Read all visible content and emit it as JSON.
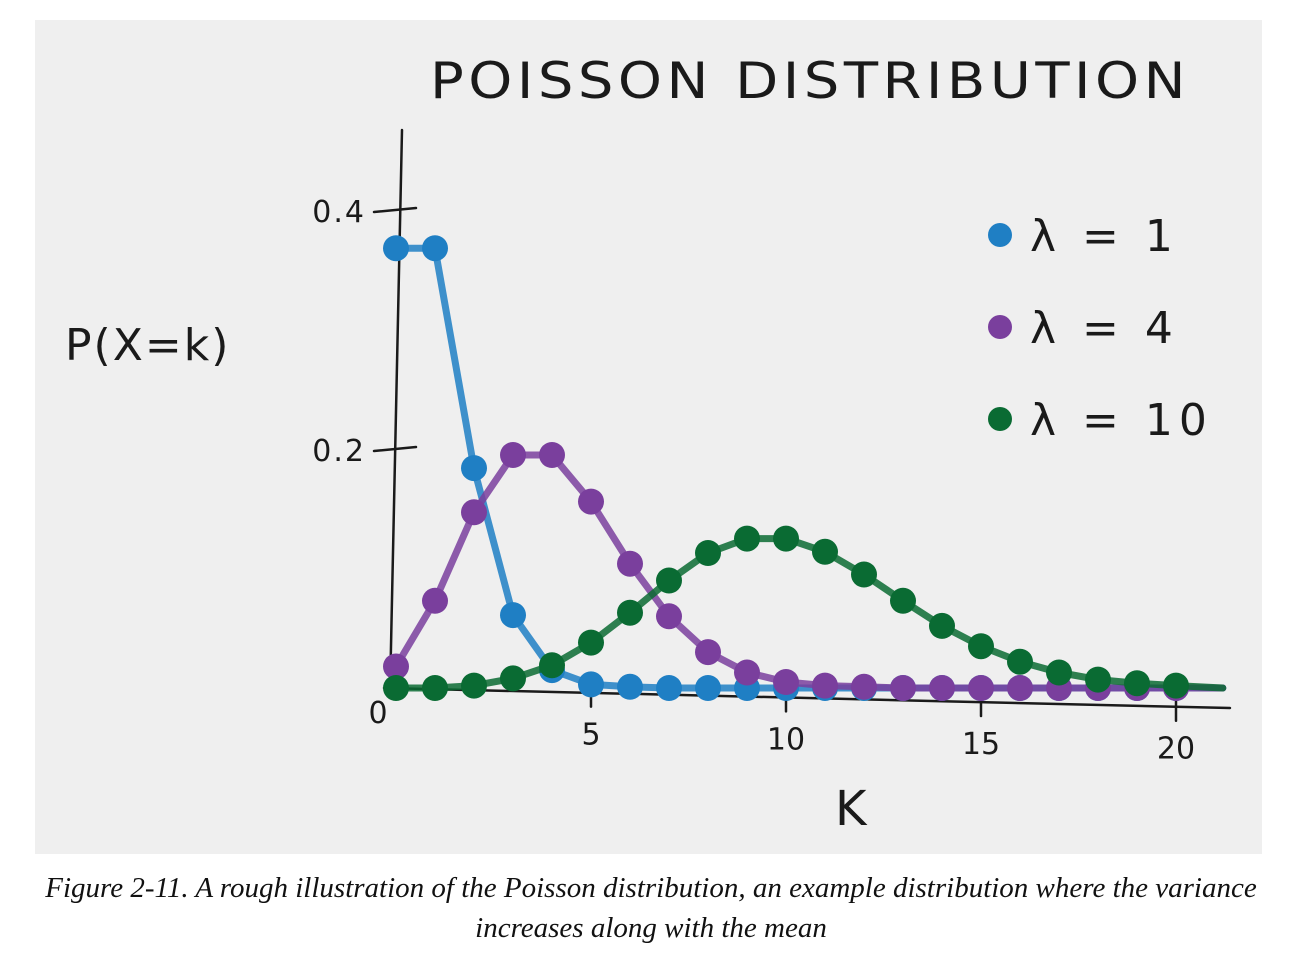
{
  "caption": "Figure 2-11. A rough illustration of the Poisson distribution, an example distribution where the variance increases along with the mean",
  "colors": {
    "lambda1": "#1f7fc4",
    "lambda4": "#7a3f9d",
    "lambda10": "#0a6b33",
    "background": "#efefef",
    "ink": "#1a1a1a"
  },
  "chart_data": {
    "type": "line",
    "title": "POISSON DISTRIBUTION",
    "xlabel": "K",
    "ylabel": "P(X=k)",
    "xlim": [
      0,
      22
    ],
    "ylim": [
      0,
      0.45
    ],
    "xticks": [
      {
        "value": 0,
        "label": "0"
      },
      {
        "value": 5,
        "label": "5"
      },
      {
        "value": 10,
        "label": "10"
      },
      {
        "value": 15,
        "label": "15"
      },
      {
        "value": 20,
        "label": "20"
      }
    ],
    "yticks": [
      {
        "value": 0.2,
        "label": "0.2"
      },
      {
        "value": 0.4,
        "label": "0.4"
      }
    ],
    "legend": "top-right",
    "grid": false,
    "x": [
      0,
      1,
      2,
      3,
      4,
      5,
      6,
      7,
      8,
      9,
      10,
      11,
      12,
      13,
      14,
      15,
      16,
      17,
      18,
      19,
      20
    ],
    "series": [
      {
        "name": "λ = 1",
        "color": "#1f7fc4",
        "values": [
          0.368,
          0.368,
          0.184,
          0.061,
          0.015,
          0.003,
          0.001,
          0,
          0,
          0,
          0,
          0,
          0,
          0,
          0,
          0,
          0,
          0,
          0,
          0,
          0
        ]
      },
      {
        "name": "λ = 4",
        "color": "#7a3f9d",
        "values": [
          0.018,
          0.073,
          0.147,
          0.195,
          0.195,
          0.156,
          0.104,
          0.06,
          0.03,
          0.013,
          0.005,
          0.002,
          0.001,
          0,
          0,
          0,
          0,
          0,
          0,
          0,
          0
        ]
      },
      {
        "name": "λ = 10",
        "color": "#0a6b33",
        "values": [
          0,
          0,
          0.002,
          0.008,
          0.019,
          0.038,
          0.063,
          0.09,
          0.113,
          0.125,
          0.125,
          0.114,
          0.095,
          0.073,
          0.052,
          0.035,
          0.022,
          0.013,
          0.007,
          0.004,
          0.002
        ]
      }
    ]
  }
}
